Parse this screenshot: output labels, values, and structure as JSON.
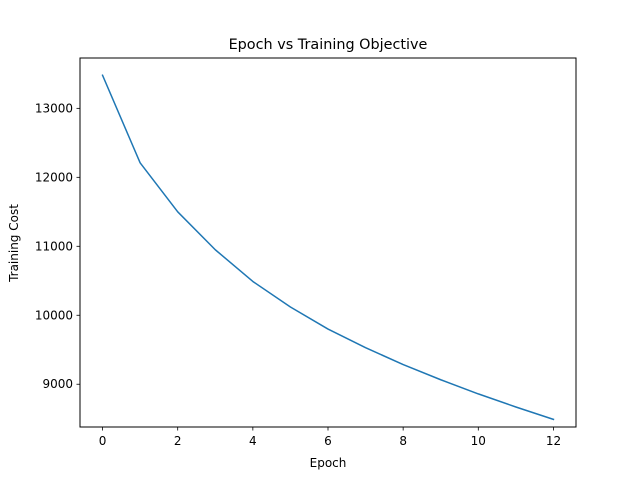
{
  "chart_data": {
    "type": "line",
    "title": "Epoch vs Training Objective",
    "xlabel": "Epoch",
    "ylabel": "Training Cost",
    "xlim": [
      -0.6,
      12.6
    ],
    "ylim": [
      8380,
      13730
    ],
    "xticks": [
      0,
      2,
      4,
      6,
      8,
      10,
      12
    ],
    "yticks": [
      9000,
      10000,
      11000,
      12000,
      13000
    ],
    "grid": false,
    "series": [
      {
        "color": "#1f77b4",
        "x": [
          0,
          1,
          2,
          3,
          4,
          5,
          6,
          7,
          8,
          9,
          10,
          11,
          12
        ],
        "y": [
          13480,
          12210,
          11500,
          10950,
          10490,
          10120,
          9800,
          9530,
          9285,
          9065,
          8860,
          8670,
          8490
        ]
      }
    ]
  }
}
